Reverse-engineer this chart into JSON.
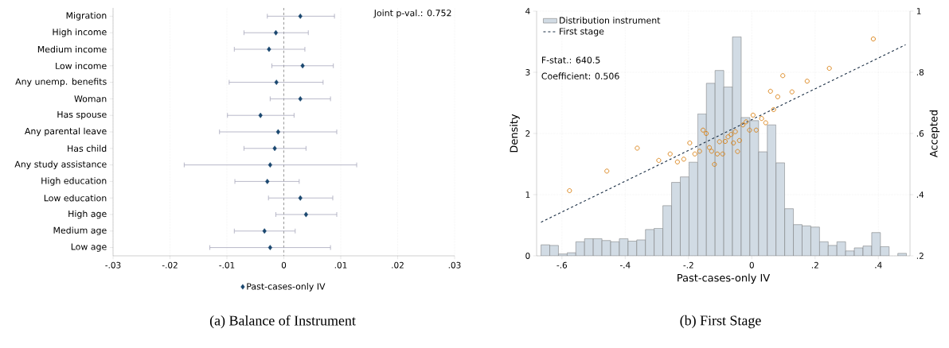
{
  "chart_data": [
    {
      "type": "scatter",
      "orientation": "horizontal",
      "title": "(a) Balance of Instrument",
      "categories": [
        "Migration",
        "High income",
        "Medium income",
        "Low income",
        "Any unemp. benefits",
        "Woman",
        "Has spouse",
        "Any parental leave",
        "Has child",
        "Any study assistance",
        "High education",
        "Low education",
        "High age",
        "Medium age",
        "Low age"
      ],
      "series": [
        {
          "name": "Past-cases-only IV",
          "color": "#1a476f",
          "values": [
            0.0029,
            -0.0014,
            -0.0026,
            0.0033,
            -0.0013,
            0.0029,
            -0.0041,
            -0.001,
            -0.0016,
            -0.0024,
            -0.0029,
            0.0029,
            0.0039,
            -0.0034,
            -0.0024
          ],
          "errors": [
            [
              -0.0029,
              0.0089
            ],
            [
              -0.007,
              0.0043
            ],
            [
              -0.0087,
              0.0037
            ],
            [
              -0.0021,
              0.0087
            ],
            [
              -0.0096,
              0.0069
            ],
            [
              -0.0024,
              0.0082
            ],
            [
              -0.0099,
              0.0018
            ],
            [
              -0.0113,
              0.0093
            ],
            [
              -0.007,
              0.0039
            ],
            [
              -0.0175,
              0.0128
            ],
            [
              -0.0086,
              0.0027
            ],
            [
              -0.0027,
              0.0086
            ],
            [
              -0.0014,
              0.0093
            ],
            [
              -0.0087,
              0.002
            ],
            [
              -0.013,
              0.0082
            ]
          ]
        }
      ],
      "xlim": [
        -0.03,
        0.03
      ],
      "xticks": [
        {
          "value": -0.03,
          "label": "-.03"
        },
        {
          "value": -0.02,
          "label": "-.02"
        },
        {
          "value": -0.01,
          "label": "-.01"
        },
        0,
        {
          "value": 0.01,
          "label": ".01"
        },
        {
          "value": 0.02,
          "label": ".02"
        },
        {
          "value": 0.03,
          "label": ".03"
        }
      ],
      "ref_lines": [
        {
          "axis": "x",
          "value": 0,
          "line_style": "dashed",
          "color": "#808080"
        }
      ],
      "annotations": [
        "Joint p-val.: 0.752"
      ],
      "grid": "x",
      "legend": "bottom",
      "marker": "diamond"
    },
    {
      "type": "histogram",
      "title": "(b) First Stage",
      "xlabel": "Past-cases-only IV",
      "ylabel": "Density",
      "y2label": "Accepted",
      "bins": [
        -0.666,
        -0.6385,
        -0.611,
        -0.5835,
        -0.556,
        -0.5285,
        -0.501,
        -0.4735,
        -0.446,
        -0.4185,
        -0.391,
        -0.3635,
        -0.336,
        -0.3085,
        -0.281,
        -0.2535,
        -0.226,
        -0.1985,
        -0.171,
        -0.1435,
        -0.116,
        -0.0885,
        -0.061,
        -0.0335,
        -0.006,
        0.0215,
        0.049,
        0.0765,
        0.104,
        0.1315,
        0.159,
        0.1865,
        0.214,
        0.2415,
        0.269,
        0.2965,
        0.324,
        0.3515,
        0.379,
        0.4065,
        0.434,
        0.4615,
        0.489
      ],
      "series": [
        {
          "name": "Distribution instrument",
          "type": "histogram",
          "color": "#d1dbe4",
          "values": [
            0.18,
            0.17,
            0.03,
            0.05,
            0.23,
            0.28,
            0.28,
            0.25,
            0.23,
            0.28,
            0.24,
            0.26,
            0.43,
            0.45,
            0.82,
            1.2,
            1.29,
            1.53,
            2.32,
            2.82,
            3.03,
            2.76,
            3.58,
            2.26,
            2.21,
            1.7,
            2.14,
            1.52,
            0.77,
            0.51,
            0.49,
            0.47,
            0.23,
            0.17,
            0.23,
            0.08,
            0.13,
            0.16,
            0.38,
            0.15,
            0,
            0.04
          ]
        },
        {
          "type": "scatter",
          "axis": "y2",
          "color": "#d97e0e",
          "marker": "circle",
          "x": [
            -0.576,
            -0.458,
            -0.362,
            -0.294,
            -0.258,
            -0.235,
            -0.215,
            -0.196,
            -0.18,
            -0.165,
            -0.154,
            -0.144,
            -0.134,
            -0.127,
            -0.118,
            -0.109,
            -0.102,
            -0.092,
            -0.084,
            -0.075,
            -0.065,
            -0.058,
            -0.052,
            -0.045,
            -0.039,
            -0.028,
            -0.018,
            -0.007,
            0.004,
            0.014,
            0.031,
            0.044,
            0.059,
            0.069,
            0.082,
            0.098,
            0.127,
            0.175,
            0.245,
            0.384
          ],
          "values": [
            0.413,
            0.477,
            0.552,
            0.512,
            0.533,
            0.507,
            0.516,
            0.569,
            0.533,
            0.542,
            0.611,
            0.6,
            0.554,
            0.542,
            0.499,
            0.533,
            0.573,
            0.533,
            0.574,
            0.589,
            0.597,
            0.569,
            0.606,
            0.541,
            0.577,
            0.628,
            0.638,
            0.611,
            0.66,
            0.611,
            0.649,
            0.635,
            0.738,
            0.678,
            0.72,
            0.789,
            0.736,
            0.771,
            0.813,
            0.909
          ]
        },
        {
          "name": "First stage",
          "type": "line",
          "axis": "y2",
          "color": "#1a2e44",
          "line_style": "dashed",
          "x": [
            -0.666,
            0.486
          ],
          "values": [
            0.31,
            0.89
          ]
        }
      ],
      "xlim": [
        -0.68,
        0.5
      ],
      "xticks": [
        {
          "value": -0.6,
          "label": "-.6"
        },
        {
          "value": -0.4,
          "label": "-.4"
        },
        {
          "value": -0.2,
          "label": "-.2"
        },
        0,
        {
          "value": 0.2,
          "label": ".2"
        },
        {
          "value": 0.4,
          "label": ".4"
        }
      ],
      "ylim": [
        0,
        4
      ],
      "yticks": [
        0,
        1,
        2,
        3,
        4
      ],
      "y2lim": [
        0.2,
        1
      ],
      "y2ticks": [
        {
          "value": 0.2,
          "label": ".2"
        },
        {
          "value": 0.4,
          "label": ".4"
        },
        {
          "value": 0.6,
          "label": ".6"
        },
        {
          "value": 0.8,
          "label": ".8"
        },
        1
      ],
      "annotations": [
        "F-stat.: 640.5",
        "Coefficient: 0.506"
      ],
      "grid": true,
      "legend": "top left"
    }
  ]
}
